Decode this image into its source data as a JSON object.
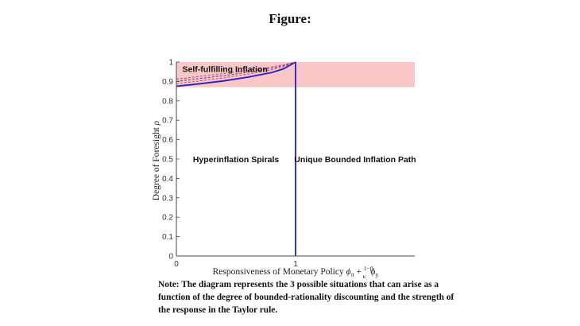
{
  "title": "Figure:",
  "note": "Note: The diagram represents the 3 possible situations that can arise as a function of the degree of bounded-rationality discounting and the strength of the response in the Taylor rule.",
  "colors": {
    "region_fill": "#f9c7c7",
    "boundary": "#1f1fc8",
    "dashed_red": "#d43c3c",
    "dashed_blue": "#2a2ad6",
    "axis": "#444444"
  },
  "chart_data": {
    "type": "line",
    "xlabel": "Responsiveness of Monetary Policy ϕπ + (1−β)/κ ϕy",
    "ylabel": "Degree of Foresight ρ",
    "xlim": [
      0,
      2
    ],
    "ylim": [
      0,
      1
    ],
    "x_ticks": [
      "0",
      "1"
    ],
    "y_ticks": [
      "0",
      "0.1",
      "0.2",
      "0.3",
      "0.4",
      "0.5",
      "0.6",
      "0.7",
      "0.8",
      "0.9",
      "1"
    ],
    "grid": false,
    "shaded_region": {
      "y_from": 0.87,
      "y_to": 1.0,
      "x_from": 0,
      "x_to": 2
    },
    "series": [
      {
        "style": "solid",
        "x": [
          0,
          0.2,
          0.4,
          0.6,
          0.8,
          0.9,
          1.0
        ],
        "y": [
          0.875,
          0.888,
          0.903,
          0.922,
          0.946,
          0.965,
          1.0
        ]
      },
      {
        "style": "dashed",
        "x": [
          0,
          0.2,
          0.4,
          0.6,
          0.8,
          0.9,
          1.0
        ],
        "y": [
          0.888,
          0.903,
          0.919,
          0.938,
          0.96,
          0.976,
          1.0
        ]
      },
      {
        "style": "dashed",
        "x": [
          0,
          0.2,
          0.4,
          0.6,
          0.8,
          0.9,
          1.0
        ],
        "y": [
          0.9,
          0.915,
          0.93,
          0.948,
          0.968,
          0.981,
          1.0
        ]
      },
      {
        "style": "dashed",
        "x": [
          0,
          0.2,
          0.4,
          0.6,
          0.8,
          0.9,
          1.0
        ],
        "y": [
          0.912,
          0.926,
          0.941,
          0.957,
          0.975,
          0.986,
          1.0
        ]
      },
      {
        "style": "solid",
        "x": [
          1,
          1
        ],
        "y": [
          0,
          1
        ]
      }
    ],
    "annotations": [
      {
        "text": "Self-fulfilling Inflation",
        "x": 0.05,
        "y": 0.965
      },
      {
        "text": "Hyperinflation Spirals",
        "x": 0.5,
        "y": 0.5
      },
      {
        "text": "Unique Bounded Inflation Path",
        "x": 1.5,
        "y": 0.5
      }
    ]
  }
}
